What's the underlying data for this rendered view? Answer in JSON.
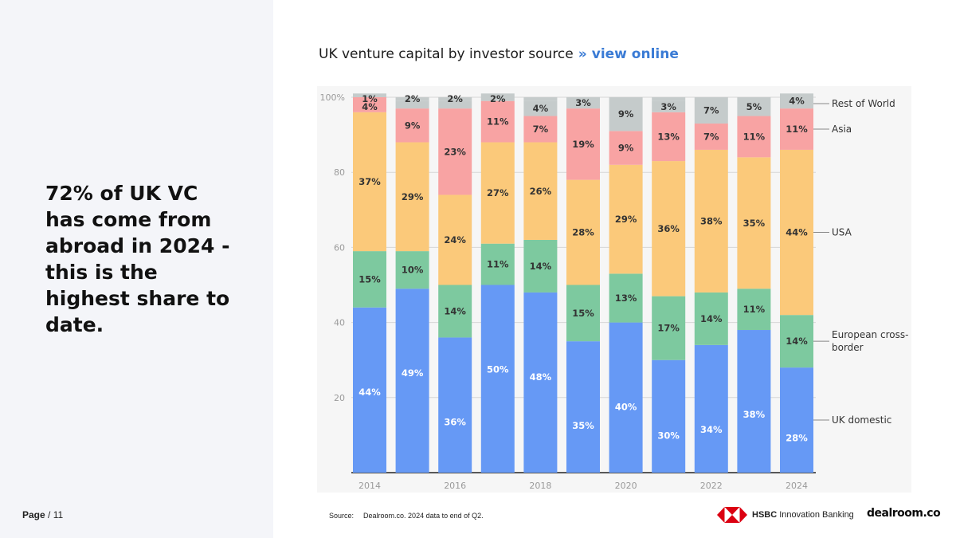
{
  "headline": "72% of UK VC has come from abroad in 2024 - this is the highest share to date.",
  "page": {
    "label": "Page",
    "separator": "/",
    "number": "11"
  },
  "title": {
    "text": "UK venture capital by investor source",
    "separator": "»",
    "link": "view online"
  },
  "source": {
    "label": "Source:",
    "text": "Dealroom.co. 2024 data to end of Q2."
  },
  "logos": {
    "hsbc_bold": "HSBC",
    "hsbc_rest": "Innovation Banking",
    "dealroom": "dealroom.co"
  },
  "chart_data": {
    "type": "bar",
    "stacked": true,
    "title": "UK venture capital by investor source",
    "categories": [
      "2014",
      "2015",
      "2016",
      "2017",
      "2018",
      "2019",
      "2020",
      "2021",
      "2022",
      "2023",
      "2024"
    ],
    "x_tick_labels": [
      "2014",
      "",
      "2016",
      "",
      "2018",
      "",
      "2020",
      "",
      "2022",
      "",
      "2024"
    ],
    "ylim": [
      0,
      100
    ],
    "y_ticks": [
      20,
      40,
      60,
      80,
      100
    ],
    "y_tick_labels": [
      "20",
      "40",
      "60",
      "80",
      "100%"
    ],
    "grid": true,
    "legend_position": "right",
    "series": [
      {
        "name": "UK domestic",
        "color": "#6699f5",
        "label_color": "#ffffff",
        "values": [
          44,
          49,
          36,
          50,
          48,
          35,
          40,
          30,
          34,
          38,
          28
        ]
      },
      {
        "name": "European cross-border",
        "color": "#7dc99f",
        "label_color": "#333333",
        "values": [
          15,
          10,
          14,
          11,
          14,
          15,
          13,
          17,
          14,
          11,
          14
        ]
      },
      {
        "name": "USA",
        "color": "#fbc97a",
        "label_color": "#333333",
        "values": [
          37,
          29,
          24,
          27,
          26,
          28,
          29,
          36,
          38,
          35,
          44
        ]
      },
      {
        "name": "Asia",
        "color": "#f8a3a3",
        "label_color": "#333333",
        "values": [
          4,
          9,
          23,
          11,
          7,
          19,
          9,
          13,
          7,
          11,
          11
        ]
      },
      {
        "name": "Rest of World",
        "color": "#c5cbcb",
        "label_color": "#333333",
        "values": [
          1,
          2,
          2,
          2,
          4,
          3,
          9,
          3,
          7,
          5,
          4
        ]
      }
    ],
    "legend_labels": [
      "Rest of World",
      "Asia",
      "USA",
      "European cross-border",
      "UK domestic"
    ]
  }
}
